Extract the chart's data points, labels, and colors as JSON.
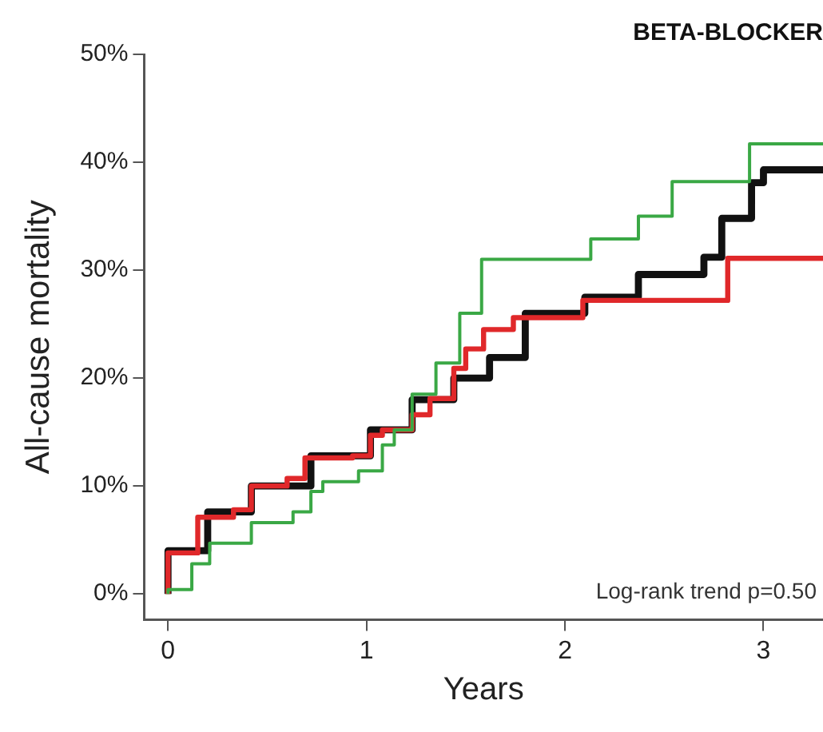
{
  "chart_data": {
    "type": "step",
    "title": "BETA-BLOCKER",
    "xlabel": "Years",
    "ylabel": "All-cause mortality",
    "xlim": [
      -0.12,
      3.3
    ],
    "ylim": [
      -2.4,
      50
    ],
    "xticks": [
      0,
      1,
      2,
      3
    ],
    "yticks": [
      {
        "value": 0,
        "label": "0%"
      },
      {
        "value": 10,
        "label": "10%"
      },
      {
        "value": 20,
        "label": "20%"
      },
      {
        "value": 30,
        "label": "30%"
      },
      {
        "value": 40,
        "label": "40%"
      },
      {
        "value": 50,
        "label": "50%"
      }
    ],
    "grid": false,
    "legend": false,
    "annotations": [
      "Log-rank trend p=0.50"
    ],
    "series": [
      {
        "color": "#3aa845",
        "x": [
          0,
          0.12,
          0.21,
          0.42,
          0.63,
          0.72,
          0.78,
          0.96,
          1.08,
          1.14,
          1.23,
          1.35,
          1.47,
          1.58,
          2.13,
          2.37,
          2.54,
          2.93,
          3.09,
          3.3
        ],
        "values": [
          0,
          0.4,
          2.8,
          4.7,
          6.6,
          7.6,
          9.5,
          10.4,
          11.4,
          13.8,
          15.2,
          18.5,
          21.4,
          26.0,
          31.0,
          32.9,
          35.0,
          38.2,
          41.7,
          41.7
        ]
      },
      {
        "color": "#e0282a",
        "x": [
          0,
          0.15,
          0.33,
          0.42,
          0.6,
          0.69,
          0.93,
          1.02,
          1.08,
          1.23,
          1.32,
          1.44,
          1.5,
          1.59,
          1.74,
          2.09,
          2.82,
          3.22,
          3.3
        ],
        "values": [
          0,
          3.8,
          7.1,
          7.8,
          10.0,
          10.7,
          12.6,
          12.8,
          14.7,
          15.2,
          16.6,
          18.1,
          20.9,
          22.7,
          24.5,
          25.6,
          27.2,
          31.1,
          31.1
        ]
      },
      {
        "color": "#111111",
        "x": [
          0,
          0.2,
          0.42,
          0.72,
          1.02,
          1.23,
          1.44,
          1.62,
          1.8,
          2.1,
          2.37,
          2.7,
          2.79,
          2.94,
          3.0,
          3.17,
          3.3
        ],
        "values": [
          0,
          4.0,
          7.6,
          10.0,
          12.8,
          15.2,
          18.0,
          20.0,
          21.9,
          26.0,
          27.5,
          29.6,
          31.2,
          34.8,
          38.1,
          39.3,
          39.3
        ]
      }
    ]
  }
}
